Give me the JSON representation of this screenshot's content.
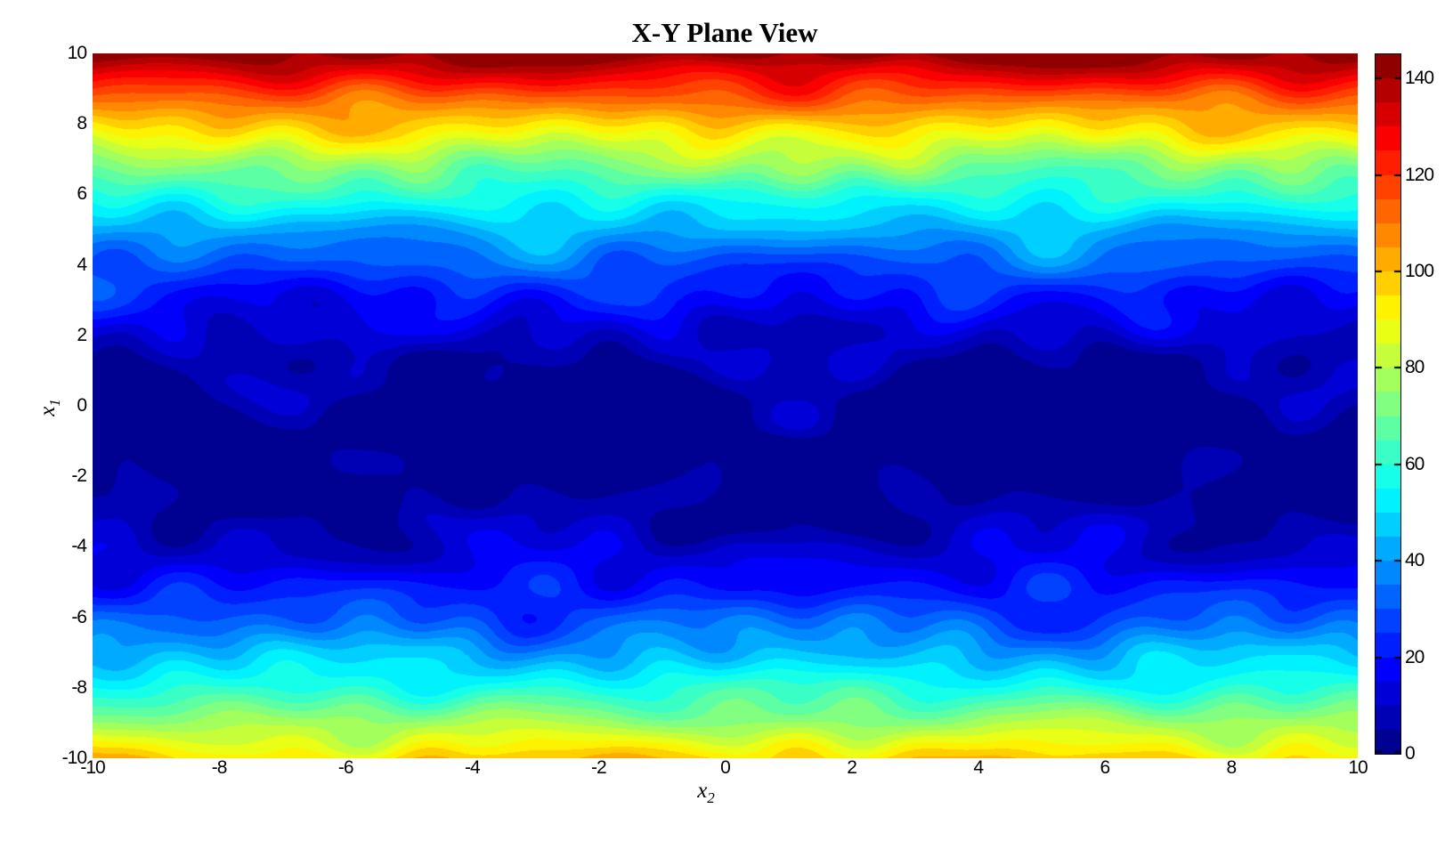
{
  "figure": {
    "background_color": "#ffffff",
    "text_color": "#000000"
  },
  "chart_data": {
    "type": "heatmap",
    "subtype": "filled-contour",
    "title": "X-Y Plane View",
    "xlabel": {
      "base": "x",
      "sub": "2"
    },
    "ylabel": {
      "base": "x",
      "sub": "1"
    },
    "xlim": [
      -10,
      10
    ],
    "ylim": [
      -10,
      10
    ],
    "xticks": [
      -10,
      -8,
      -6,
      -4,
      -2,
      0,
      2,
      4,
      6,
      8,
      10
    ],
    "yticks": [
      -10,
      -8,
      -6,
      -4,
      -2,
      0,
      2,
      4,
      6,
      8,
      10
    ],
    "grid": false,
    "colormap": "jet",
    "colormap_min_color": "#00008f",
    "colormap_max_color": "#800000",
    "clim": [
      0,
      145
    ],
    "contour_interval": 5,
    "colorbar": {
      "position": "right",
      "ticks": [
        0,
        20,
        40,
        60,
        80,
        100,
        120,
        140
      ]
    },
    "surface": {
      "description": "Value depends mainly on x1: dark-blue trough (~0) near x1 = -1, rising to ~145 (dark red) at x1 = 10 and ~97 (orange) at x1 = -10, with smooth wavy ripples along x2.",
      "formula": "v(x1,x2) = quad_coeff*(x1 + x1_offset)^2 + sum_i amp_i*sin(ax_i*x2 + px_i)*sin(ay_i*x1 + py_i)",
      "quad_coeff": 1.2,
      "x1_offset": 1,
      "profile_x1": [
        -10,
        -8,
        -6,
        -4,
        -2,
        -1,
        0,
        2,
        4,
        6,
        8,
        10
      ],
      "profile_value": [
        97,
        59,
        30,
        11,
        1,
        0,
        1,
        11,
        30,
        59,
        97,
        145
      ],
      "ripple_terms": [
        {
          "amp": 4.5,
          "ax": 0.8,
          "px": 0.7,
          "ay": 0.9,
          "py": 1.4
        },
        {
          "amp": 3.5,
          "ax": 1.5,
          "px": 3.1,
          "ay": 1.4,
          "py": 4.2
        },
        {
          "amp": 3.0,
          "ax": 2.3,
          "px": 5.4,
          "ay": 2.0,
          "py": 2.3
        },
        {
          "amp": 2.5,
          "ax": 3.2,
          "px": 1.2,
          "ay": 2.7,
          "py": 5.6
        },
        {
          "amp": 2.0,
          "ax": 0.5,
          "px": 4.4,
          "ay": 3.4,
          "py": 0.4
        },
        {
          "amp": 1.8,
          "ax": 4.1,
          "px": 2.6,
          "ay": 0.7,
          "py": 3.0
        }
      ]
    }
  }
}
